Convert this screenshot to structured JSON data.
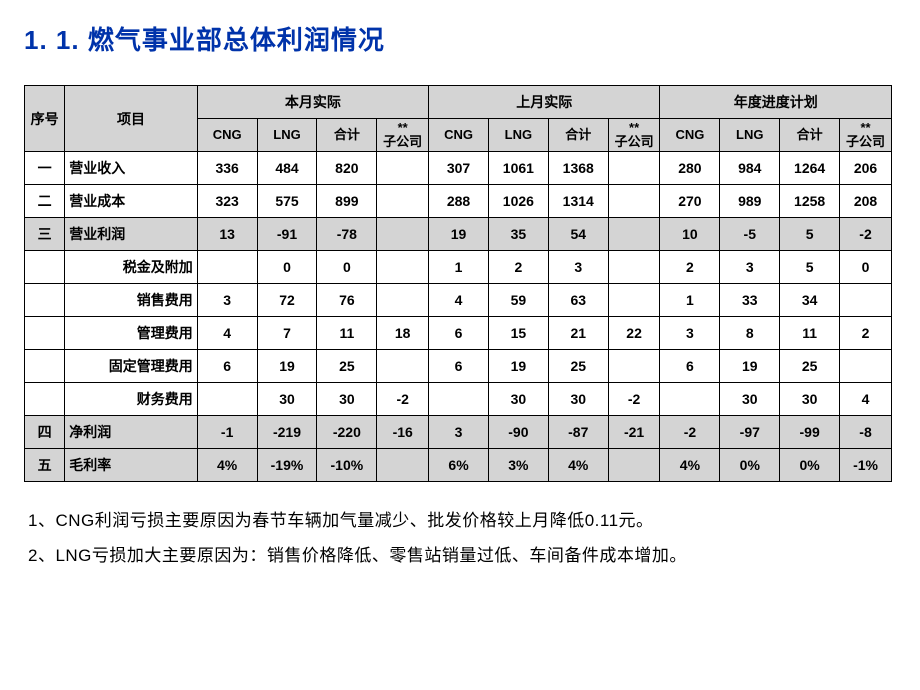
{
  "title": "1. 1. 燃气事业部总体利润情况",
  "header": {
    "seq": "序号",
    "item": "项目",
    "groups": [
      "本月实际",
      "上月实际",
      "年度进度计划"
    ],
    "sub": {
      "cng": "CNG",
      "lng": "LNG",
      "total": "合计",
      "subsidiary": "**\n子公司"
    }
  },
  "rows": [
    {
      "seq": "一",
      "item": "营业收入",
      "align": "left",
      "shade": false,
      "v": [
        "336",
        "484",
        "820",
        "",
        "307",
        "1061",
        "1368",
        "",
        "280",
        "984",
        "1264",
        "206"
      ]
    },
    {
      "seq": "二",
      "item": "营业成本",
      "align": "left",
      "shade": false,
      "v": [
        "323",
        "575",
        "899",
        "",
        "288",
        "1026",
        "1314",
        "",
        "270",
        "989",
        "1258",
        "208"
      ]
    },
    {
      "seq": "三",
      "item": "营业利润",
      "align": "left",
      "shade": true,
      "v": [
        "13",
        "-91",
        "-78",
        "",
        "19",
        "35",
        "54",
        "",
        "10",
        "-5",
        "5",
        "-2"
      ]
    },
    {
      "seq": "",
      "item": "税金及附加",
      "align": "right",
      "shade": false,
      "v": [
        "",
        "0",
        "0",
        "",
        "1",
        "2",
        "3",
        "",
        "2",
        "3",
        "5",
        "0"
      ]
    },
    {
      "seq": "",
      "item": "销售费用",
      "align": "right",
      "shade": false,
      "v": [
        "3",
        "72",
        "76",
        "",
        "4",
        "59",
        "63",
        "",
        "1",
        "33",
        "34",
        ""
      ]
    },
    {
      "seq": "",
      "item": "管理费用",
      "align": "right",
      "shade": false,
      "v": [
        "4",
        "7",
        "11",
        "18",
        "6",
        "15",
        "21",
        "22",
        "3",
        "8",
        "11",
        "2"
      ]
    },
    {
      "seq": "",
      "item": "固定管理费用",
      "align": "right",
      "shade": false,
      "v": [
        "6",
        "19",
        "25",
        "",
        "6",
        "19",
        "25",
        "",
        "6",
        "19",
        "25",
        ""
      ]
    },
    {
      "seq": "",
      "item": "财务费用",
      "align": "right",
      "shade": false,
      "v": [
        "",
        "30",
        "30",
        "-2",
        "",
        "30",
        "30",
        "-2",
        "",
        "30",
        "30",
        "4"
      ]
    },
    {
      "seq": "四",
      "item": "净利润",
      "align": "left",
      "shade": true,
      "v": [
        "-1",
        "-219",
        "-220",
        "-16",
        "3",
        "-90",
        "-87",
        "-21",
        "-2",
        "-97",
        "-99",
        "-8"
      ]
    },
    {
      "seq": "五",
      "item": "毛利率",
      "align": "left",
      "shade": true,
      "v": [
        "4%",
        "-19%",
        "-10%",
        "",
        "6%",
        "3%",
        "4%",
        "",
        "4%",
        "0%",
        "0%",
        "-1%"
      ]
    }
  ],
  "notes": [
    "1、CNG利润亏损主要原因为春节车辆加气量减少、批发价格较上月降低0.11元。",
    "2、LNG亏损加大主要原因为：销售价格降低、零售站销量过低、车间备件成本增加。"
  ],
  "colors": {
    "title": "#0033aa",
    "shade": "#d4d4d4",
    "border": "#000000",
    "background": "#ffffff"
  }
}
